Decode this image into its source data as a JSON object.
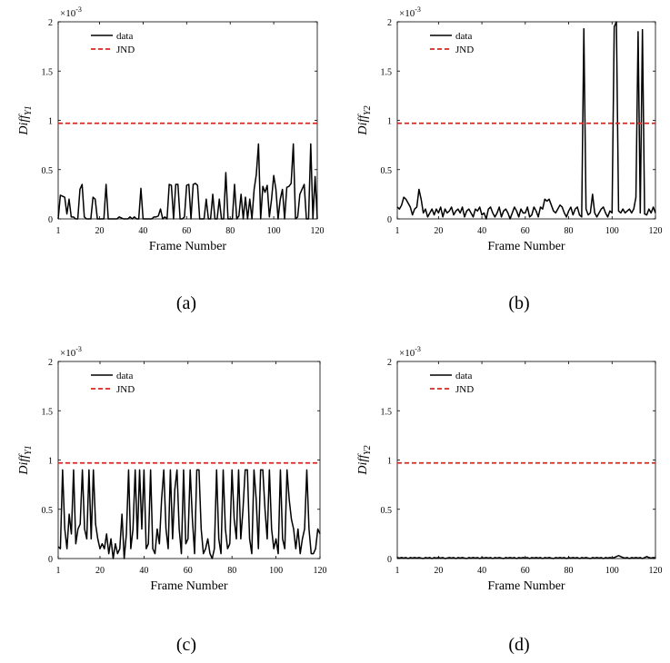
{
  "colors": {
    "data": "#000000",
    "jnd": "#e8211c",
    "axis": "#000000"
  },
  "exponent_label": "×10",
  "exponent_power": "-3",
  "legend": {
    "data": "data",
    "jnd": "JND"
  },
  "chart_data": [
    {
      "type": "line",
      "caption": "(a)",
      "xlabel": "Frame Number",
      "ylabel_main": "Diff",
      "ylabel_sub": "Y1",
      "xlim": [
        1,
        120
      ],
      "ylim": [
        0,
        2
      ],
      "y_scale_note": "×10^-3",
      "xticks": [
        1,
        20,
        40,
        60,
        80,
        100,
        120
      ],
      "yticks": [
        0,
        0.5,
        1,
        1.5,
        2
      ],
      "ytick_labels": [
        "0",
        "0.5",
        "1",
        "1.5",
        "2"
      ],
      "grid": false,
      "legend_position": "top-left",
      "series": [
        {
          "name": "data",
          "x_start": 1,
          "x_step": 1,
          "values": [
            0,
            0.24,
            0.23,
            0.22,
            0.05,
            0.2,
            0.02,
            0.02,
            0,
            0,
            0.3,
            0.35,
            0.02,
            0,
            0,
            0,
            0.22,
            0.2,
            0,
            0,
            0,
            0,
            0.35,
            0,
            0,
            0,
            0,
            0,
            0.02,
            0.01,
            0,
            0,
            0,
            0.02,
            0,
            0.02,
            0,
            0,
            0.31,
            0,
            0,
            0,
            0,
            0,
            0.02,
            0.02,
            0.03,
            0.1,
            0,
            0.02,
            0,
            0.35,
            0.34,
            0,
            0.35,
            0.35,
            0,
            0,
            0.02,
            0.34,
            0.35,
            0,
            0.35,
            0.36,
            0.34,
            0,
            0,
            0,
            0.2,
            0,
            0,
            0.25,
            0,
            0,
            0.2,
            0,
            0,
            0.47,
            0,
            0,
            0,
            0.35,
            0,
            0.03,
            0.25,
            0,
            0.22,
            0,
            0.2,
            0,
            0.3,
            0.45,
            0.76,
            0,
            0.33,
            0.27,
            0.34,
            0.02,
            0.2,
            0.44,
            0.3,
            0,
            0.2,
            0.3,
            0,
            0.32,
            0.33,
            0.36,
            0.76,
            0,
            0.02,
            0.25,
            0.3,
            0.35,
            0,
            0,
            0.76,
            0,
            0.43,
            0
          ]
        },
        {
          "name": "JND",
          "constant": 0.97
        }
      ]
    },
    {
      "type": "line",
      "caption": "(b)",
      "xlabel": "Frame Number",
      "ylabel_main": "Diff",
      "ylabel_sub": "Y2",
      "xlim": [
        1,
        120
      ],
      "ylim": [
        0,
        2
      ],
      "y_scale_note": "×10^-3",
      "xticks": [
        1,
        20,
        40,
        60,
        80,
        100,
        120
      ],
      "yticks": [
        0,
        0.5,
        1,
        1.5,
        2
      ],
      "ytick_labels": [
        "0",
        "0.5",
        "1",
        "1.5",
        "2"
      ],
      "grid": false,
      "legend_position": "top-left",
      "series": [
        {
          "name": "data",
          "x_start": 1,
          "x_step": 1,
          "values": [
            0.12,
            0.1,
            0.14,
            0.22,
            0.2,
            0.16,
            0.12,
            0.04,
            0.1,
            0.12,
            0.3,
            0.2,
            0.06,
            0.1,
            0.02,
            0.06,
            0.1,
            0.04,
            0.1,
            0.06,
            0.12,
            0.02,
            0.1,
            0.06,
            0.08,
            0.12,
            0.04,
            0.08,
            0.1,
            0.06,
            0.12,
            0.02,
            0.08,
            0.1,
            0.06,
            0.02,
            0.1,
            0.08,
            0.12,
            0.04,
            0.06,
            0,
            0.1,
            0.12,
            0.06,
            0.02,
            0.06,
            0.12,
            0.02,
            0.08,
            0.1,
            0.06,
            0,
            0.06,
            0.12,
            0.08,
            0.02,
            0.1,
            0.06,
            0.06,
            0.12,
            0.02,
            0.04,
            0.12,
            0.08,
            0.02,
            0.12,
            0.1,
            0.2,
            0.18,
            0.2,
            0.14,
            0.08,
            0.06,
            0.1,
            0.14,
            0.12,
            0.06,
            0.02,
            0.08,
            0.12,
            0.04,
            0.1,
            0.12,
            0.04,
            0.02,
            1.93,
            0.1,
            0.04,
            0.06,
            0.25,
            0.06,
            0.02,
            0.06,
            0.1,
            0.12,
            0.06,
            0.02,
            0.08,
            0.06,
            1.95,
            2,
            0.08,
            0.06,
            0.1,
            0.06,
            0.08,
            0.1,
            0.06,
            0.1,
            0.22,
            1.9,
            0.06,
            1.92,
            0.05,
            0.04,
            0.1,
            0.06,
            0.12,
            0.06
          ]
        },
        {
          "name": "JND",
          "constant": 0.97
        }
      ]
    },
    {
      "type": "line",
      "caption": "(c)",
      "xlabel": "Frame Number",
      "ylabel_main": "Diff",
      "ylabel_sub": "Y1",
      "xlim": [
        1,
        120
      ],
      "ylim": [
        0,
        2
      ],
      "y_scale_note": "×10^-3",
      "xticks": [
        1,
        20,
        40,
        60,
        80,
        100,
        120
      ],
      "yticks": [
        0,
        0.5,
        1,
        1.5,
        2
      ],
      "ytick_labels": [
        "0",
        "0.5",
        "1",
        "1.5",
        "2"
      ],
      "grid": false,
      "legend_position": "top-left",
      "series": [
        {
          "name": "data",
          "x_start": 1,
          "x_step": 1,
          "values": [
            0.12,
            0.1,
            0.9,
            0.3,
            0.1,
            0.45,
            0.25,
            0.9,
            0.15,
            0.3,
            0.35,
            0.9,
            0.3,
            0.2,
            0.9,
            0.2,
            0.9,
            0.35,
            0.2,
            0.1,
            0.15,
            0.1,
            0.25,
            0.05,
            0.2,
            0,
            0.15,
            0.05,
            0.1,
            0.45,
            0,
            0.25,
            0.9,
            0.1,
            0.3,
            0.9,
            0.2,
            0.9,
            0.3,
            0.9,
            0.1,
            0.15,
            0.9,
            0.1,
            0.05,
            0.3,
            0.15,
            0.6,
            0.9,
            0.3,
            0.1,
            0.9,
            0.2,
            0.7,
            0.9,
            0.3,
            0.05,
            0.9,
            0.15,
            0.2,
            0.9,
            0.4,
            0.05,
            0.9,
            0.9,
            0.3,
            0.05,
            0.1,
            0.2,
            0.05,
            0,
            0.1,
            0.9,
            0.2,
            0.05,
            0.9,
            0.3,
            0.1,
            0.15,
            0.9,
            0.4,
            0.2,
            0.9,
            0.2,
            0.5,
            0.9,
            0.9,
            0.2,
            0.05,
            0.9,
            0.6,
            0.1,
            0.9,
            0.9,
            0.5,
            0.2,
            0.9,
            0.3,
            0.1,
            0.2,
            0.05,
            0.9,
            0.2,
            0.1,
            0.9,
            0.6,
            0.4,
            0.3,
            0.1,
            0.3,
            0.05,
            0.2,
            0.3,
            0.9,
            0.3,
            0.05,
            0.05,
            0.1,
            0.3,
            0.25
          ]
        },
        {
          "name": "JND",
          "constant": 0.97
        }
      ]
    },
    {
      "type": "line",
      "caption": "(d)",
      "xlabel": "Frame Number",
      "ylabel_main": "Diff",
      "ylabel_sub": "Y2",
      "xlim": [
        1,
        120
      ],
      "ylim": [
        0,
        2
      ],
      "y_scale_note": "×10^-3",
      "xticks": [
        1,
        20,
        40,
        60,
        80,
        100,
        120
      ],
      "yticks": [
        0,
        0.5,
        1,
        1.5,
        2
      ],
      "ytick_labels": [
        "0",
        "0.5",
        "1",
        "1.5",
        "2"
      ],
      "grid": false,
      "legend_position": "top-left",
      "series": [
        {
          "name": "data",
          "x_start": 1,
          "x_step": 1,
          "values": [
            0.01,
            0.005,
            0.01,
            0.005,
            0.01,
            0,
            0.01,
            0.005,
            0.01,
            0.005,
            0.01,
            0.005,
            0,
            0.01,
            0.005,
            0.01,
            0,
            0.01,
            0.005,
            0.01,
            0.005,
            0.01,
            0,
            0.005,
            0.01,
            0.005,
            0.01,
            0,
            0.01,
            0.005,
            0.01,
            0.005,
            0,
            0.01,
            0.005,
            0.01,
            0.005,
            0.01,
            0,
            0.01,
            0.005,
            0.01,
            0.005,
            0.01,
            0,
            0.01,
            0.005,
            0.01,
            0.005,
            0,
            0.01,
            0.005,
            0.01,
            0.005,
            0.01,
            0,
            0.01,
            0.005,
            0.01,
            0.005,
            0.01,
            0,
            0.01,
            0.005,
            0.01,
            0.005,
            0.01,
            0,
            0.01,
            0.005,
            0.01,
            0.005,
            0,
            0.01,
            0.005,
            0.01,
            0.005,
            0.01,
            0,
            0.01,
            0.005,
            0.01,
            0.005,
            0.01,
            0,
            0.01,
            0.005,
            0.01,
            0.005,
            0,
            0.01,
            0.005,
            0.01,
            0.005,
            0.01,
            0,
            0.01,
            0.005,
            0.01,
            0.005,
            0.01,
            0.02,
            0.03,
            0.02,
            0.01,
            0.005,
            0.01,
            0,
            0.01,
            0.005,
            0.01,
            0.005,
            0.01,
            0,
            0.01,
            0.02,
            0.01,
            0.005,
            0.01,
            0.005
          ]
        },
        {
          "name": "JND",
          "constant": 0.97
        }
      ]
    }
  ]
}
